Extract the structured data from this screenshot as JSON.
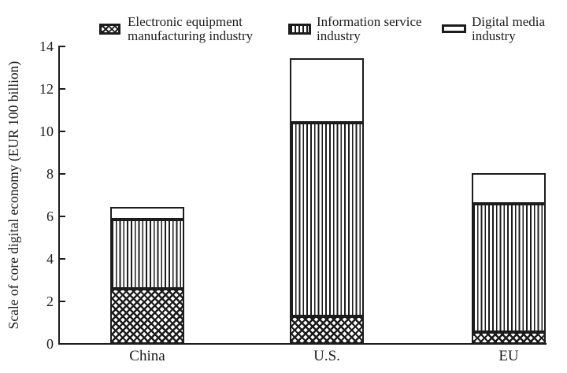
{
  "figure": {
    "background": "#ffffff",
    "ink_color": "#1c1c1c"
  },
  "chart_data": {
    "type": "bar",
    "stacked": true,
    "title": "",
    "xlabel": "",
    "ylabel": "Scale of core digital economy (EUR 100 billion)",
    "categories": [
      "China",
      "U.S.",
      "EU"
    ],
    "series": [
      {
        "name": "Electronic equipment manufacturing industry",
        "pattern": "crosshatch",
        "values": [
          2.6,
          1.3,
          0.55
        ]
      },
      {
        "name": "Information service industry",
        "pattern": "vertical-stripes",
        "values": [
          3.25,
          9.1,
          6.05
        ]
      },
      {
        "name": "Digital media industry",
        "pattern": "plain-white",
        "values": [
          0.6,
          3.05,
          1.45
        ]
      }
    ],
    "stack_totals": [
      6.45,
      13.45,
      8.05
    ],
    "ylim": [
      0,
      14
    ],
    "yticks": [
      0,
      2,
      4,
      6,
      8,
      10,
      12,
      14
    ],
    "grid": false,
    "legend_position": "top"
  }
}
